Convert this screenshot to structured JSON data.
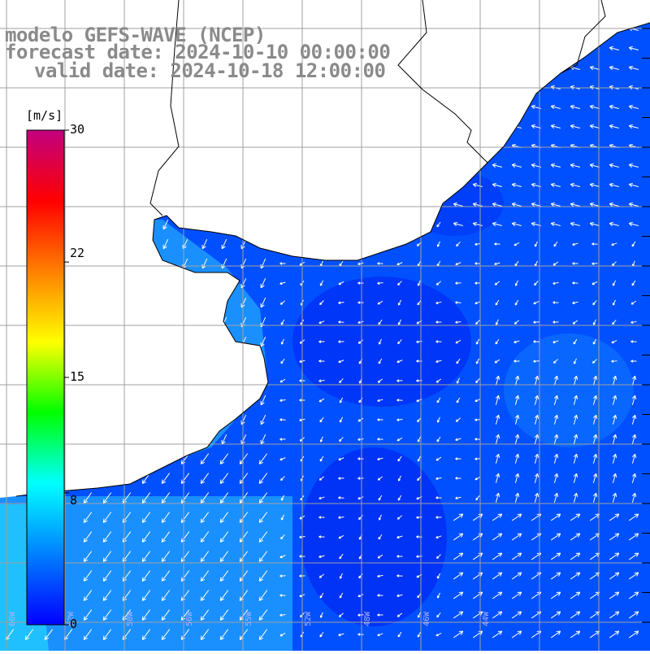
{
  "title": {
    "line1": "modelo GEFS-WAVE (NCEP)",
    "line2": "forecast date: 2024-10-10 00:00:00",
    "line3": "valid date: 2024-10-18 12:00:00"
  },
  "colorbar": {
    "unit": "[m/s]",
    "min": 0,
    "max": 30,
    "tick_labels": [
      "30",
      "22",
      "15",
      "8",
      "0"
    ],
    "tick_values": [
      30,
      22,
      15,
      8,
      0
    ],
    "colors": [
      "#0000ff",
      "#0080ff",
      "#00ffff",
      "#00ff00",
      "#ffff00",
      "#ff8000",
      "#ff0000",
      "#c00080"
    ]
  },
  "map": {
    "field": "wind speed and direction",
    "ocean_fill_colors": [
      "#0020f0",
      "#0050ff",
      "#1a90ff",
      "#20c0ff"
    ],
    "land_color": "#ffffff",
    "grid_color": "#a0a0a0",
    "coastline_color": "#000000",
    "arrow_color": "#ffffff",
    "lon_labels": [
      "66W",
      "62W",
      "58W",
      "56W",
      "55W",
      "52W",
      "48W",
      "46W",
      "44W"
    ]
  }
}
